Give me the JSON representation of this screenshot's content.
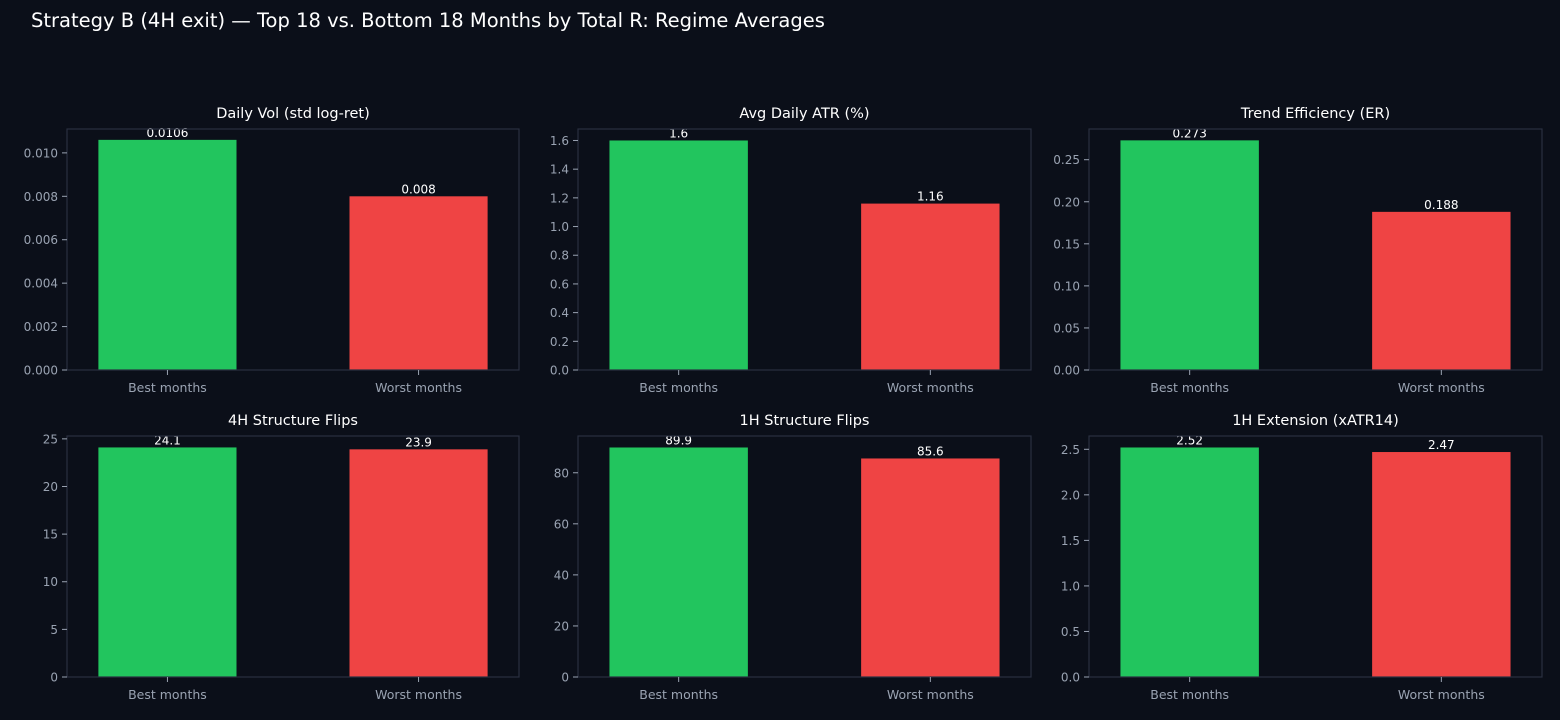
{
  "figure": {
    "title": "Strategy B (4H exit) — Top 18 vs. Bottom 18 Months by Total R: Regime Averages"
  },
  "colors": {
    "background": "#0b0f19",
    "axes_border": "#2a3040",
    "tick_text": "#9aa3b2",
    "title_text": "#ffffff",
    "best": "#22c55e",
    "worst": "#ef4444"
  },
  "chart_data": [
    {
      "type": "bar",
      "title": "Daily Vol (std log-ret)",
      "categories": [
        "Best months",
        "Worst months"
      ],
      "values": [
        0.0106,
        0.008
      ],
      "value_labels": [
        "0.0106",
        "0.008"
      ],
      "ylim": [
        0,
        0.0111
      ],
      "yticks": [
        0,
        0.002,
        0.004,
        0.006,
        0.008,
        0.01
      ],
      "ytick_labels": [
        "0.000",
        "0.002",
        "0.004",
        "0.006",
        "0.008",
        "0.010"
      ],
      "xlabel": "",
      "ylabel": "",
      "grid": false
    },
    {
      "type": "bar",
      "title": "Avg Daily ATR (%)",
      "categories": [
        "Best months",
        "Worst months"
      ],
      "values": [
        1.6,
        1.16
      ],
      "value_labels": [
        "1.6",
        "1.16"
      ],
      "ylim": [
        0,
        1.68
      ],
      "yticks": [
        0,
        0.2,
        0.4,
        0.6,
        0.8,
        1.0,
        1.2,
        1.4,
        1.6
      ],
      "ytick_labels": [
        "0.0",
        "0.2",
        "0.4",
        "0.6",
        "0.8",
        "1.0",
        "1.2",
        "1.4",
        "1.6"
      ],
      "xlabel": "",
      "ylabel": "",
      "grid": false
    },
    {
      "type": "bar",
      "title": "Trend Efficiency (ER)",
      "categories": [
        "Best months",
        "Worst months"
      ],
      "values": [
        0.273,
        0.188
      ],
      "value_labels": [
        "0.273",
        "0.188"
      ],
      "ylim": [
        0,
        0.2865
      ],
      "yticks": [
        0,
        0.05,
        0.1,
        0.15,
        0.2,
        0.25
      ],
      "ytick_labels": [
        "0.00",
        "0.05",
        "0.10",
        "0.15",
        "0.20",
        "0.25"
      ],
      "xlabel": "",
      "ylabel": "",
      "grid": false
    },
    {
      "type": "bar",
      "title": "4H Structure Flips",
      "categories": [
        "Best months",
        "Worst months"
      ],
      "values": [
        24.1,
        23.9
      ],
      "value_labels": [
        "24.1",
        "23.9"
      ],
      "ylim": [
        0,
        25.3
      ],
      "yticks": [
        0,
        5,
        10,
        15,
        20,
        25
      ],
      "ytick_labels": [
        "0",
        "5",
        "10",
        "15",
        "20",
        "25"
      ],
      "xlabel": "",
      "ylabel": "",
      "grid": false
    },
    {
      "type": "bar",
      "title": "1H Structure Flips",
      "categories": [
        "Best months",
        "Worst months"
      ],
      "values": [
        89.9,
        85.6
      ],
      "value_labels": [
        "89.9",
        "85.6"
      ],
      "ylim": [
        0,
        94.4
      ],
      "yticks": [
        0,
        20,
        40,
        60,
        80
      ],
      "ytick_labels": [
        "0",
        "20",
        "40",
        "60",
        "80"
      ],
      "xlabel": "",
      "ylabel": "",
      "grid": false
    },
    {
      "type": "bar",
      "title": "1H Extension (xATR14)",
      "categories": [
        "Best months",
        "Worst months"
      ],
      "values": [
        2.52,
        2.47
      ],
      "value_labels": [
        "2.52",
        "2.47"
      ],
      "ylim": [
        0,
        2.646
      ],
      "yticks": [
        0,
        0.5,
        1.0,
        1.5,
        2.0,
        2.5
      ],
      "ytick_labels": [
        "0.0",
        "0.5",
        "1.0",
        "1.5",
        "2.0",
        "2.5"
      ],
      "xlabel": "",
      "ylabel": "",
      "grid": false
    }
  ]
}
